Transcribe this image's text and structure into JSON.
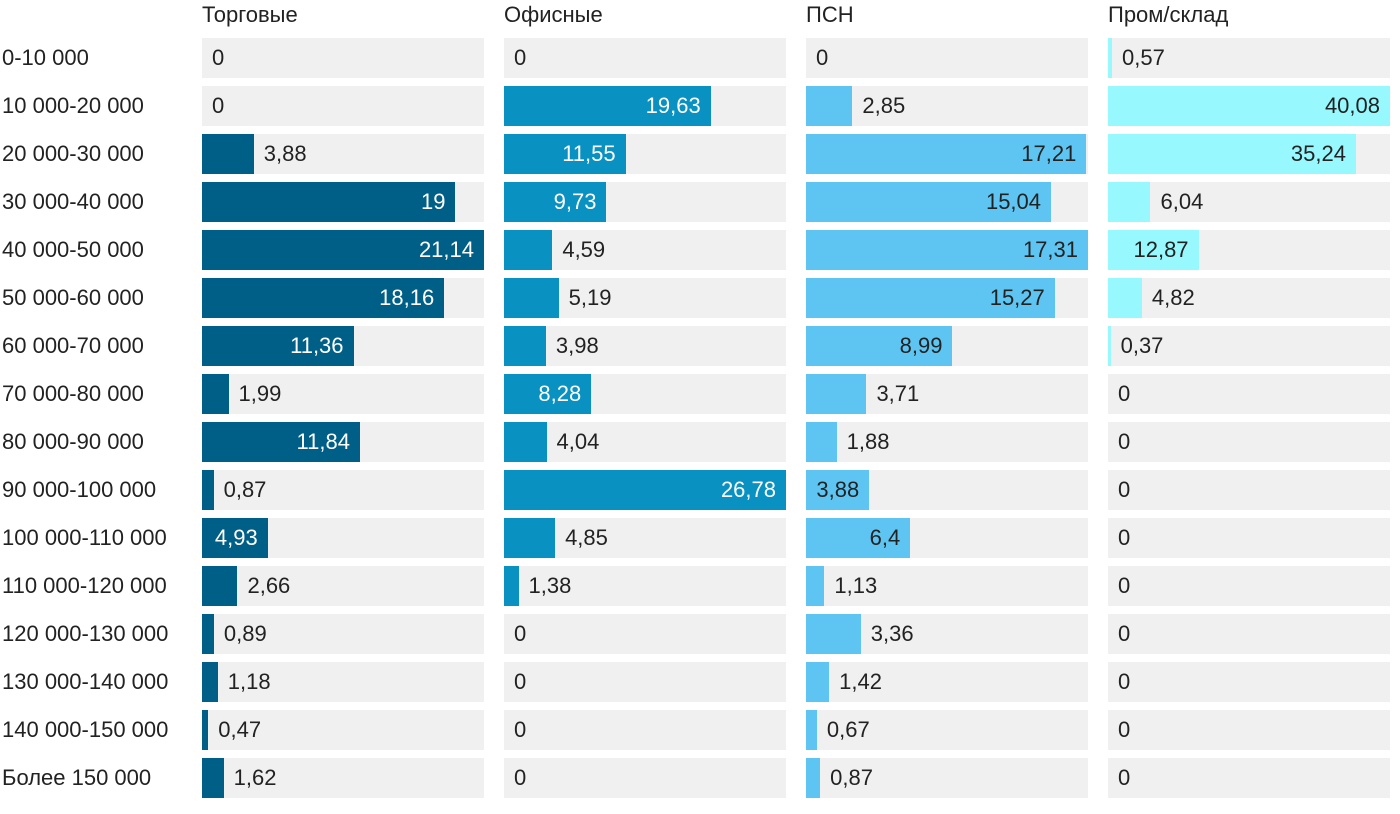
{
  "chart_data": {
    "type": "bar",
    "orientation": "horizontal",
    "title": "",
    "categories": [
      "0-10 000",
      "10 000-20 000",
      "20 000-30 000",
      "30 000-40 000",
      "40 000-50 000",
      "50 000-60 000",
      "60 000-70 000",
      "70 000-80 000",
      "80 000-90 000",
      "90 000-100 000",
      "100 000-110 000",
      "110 000-120 000",
      "120 000-130 000",
      "130 000-140 000",
      "140 000-150 000",
      "Более 150 000"
    ],
    "series": [
      {
        "name": "Торговые",
        "color": "#005f86",
        "xlim": [
          0,
          21.14
        ],
        "values": [
          0,
          0,
          3.88,
          19,
          21.14,
          18.16,
          11.36,
          1.99,
          11.84,
          0.87,
          4.93,
          2.66,
          0.89,
          1.18,
          0.47,
          1.62
        ],
        "labels": [
          "0",
          "0",
          "3,88",
          "19",
          "21,14",
          "18,16",
          "11,36",
          "1,99",
          "11,84",
          "0,87",
          "4,93",
          "2,66",
          "0,89",
          "1,18",
          "0,47",
          "1,62"
        ]
      },
      {
        "name": "Офисные",
        "color": "#0891c1",
        "xlim": [
          0,
          26.78
        ],
        "values": [
          0,
          19.63,
          11.55,
          9.73,
          4.59,
          5.19,
          3.98,
          8.28,
          4.04,
          26.78,
          4.85,
          1.38,
          0,
          0,
          0,
          0
        ],
        "labels": [
          "0",
          "19,63",
          "11,55",
          "9,73",
          "4,59",
          "5,19",
          "3,98",
          "8,28",
          "4,04",
          "26,78",
          "4,85",
          "1,38",
          "0",
          "0",
          "0",
          "0"
        ]
      },
      {
        "name": "ПСН",
        "color": "#5ec5f2",
        "xlim": [
          0,
          17.31
        ],
        "values": [
          0,
          2.85,
          17.21,
          15.04,
          17.31,
          15.27,
          8.99,
          3.71,
          1.88,
          3.88,
          6.4,
          1.13,
          3.36,
          1.42,
          0.67,
          0.87
        ],
        "labels": [
          "0",
          "2,85",
          "17,21",
          "15,04",
          "17,31",
          "15,27",
          "8,99",
          "3,71",
          "1,88",
          "3,88",
          "6,4",
          "1,13",
          "3,36",
          "1,42",
          "0,67",
          "0,87"
        ]
      },
      {
        "name": "Пром/склад",
        "color": "#97f9fd",
        "xlim": [
          0,
          40.08
        ],
        "values": [
          0.57,
          40.08,
          35.24,
          6.04,
          12.87,
          4.82,
          0.37,
          0,
          0,
          0,
          0,
          0,
          0,
          0,
          0,
          0
        ],
        "labels": [
          "0,57",
          "40,08",
          "35,24",
          "6,04",
          "12,87",
          "4,82",
          "0,37",
          "0",
          "0",
          "0",
          "0",
          "0",
          "0",
          "0",
          "0",
          "0"
        ]
      }
    ]
  }
}
